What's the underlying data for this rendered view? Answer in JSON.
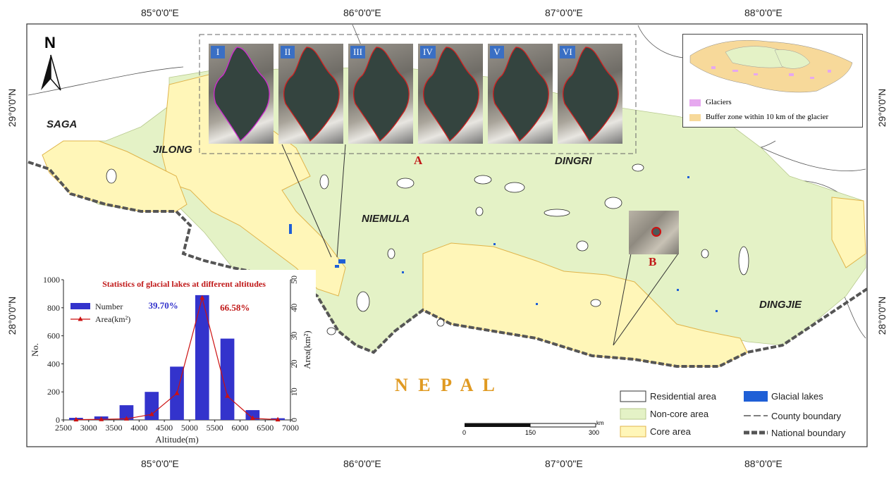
{
  "north_arrow": {
    "label": "N"
  },
  "coords_top": [
    "85°0'0\"E",
    "86°0'0\"E",
    "87°0'0\"E",
    "88°0'0\"E"
  ],
  "coords_bottom": [
    "85°0'0\"E",
    "86°0'0\"E",
    "87°0'0\"E",
    "88°0'0\"E"
  ],
  "coords_left": [
    "29°0'0\"N",
    "28°0'0\"N"
  ],
  "coords_right": [
    "29°0'0\"N",
    "28°0'0\"N"
  ],
  "regions": {
    "saga": "SAGA",
    "jilong": "JILONG",
    "niemula": "NIEMULA",
    "dingri": "DINGRI",
    "dingjie": "DINGJIE",
    "nepal": "N E P A L"
  },
  "inset_panels": [
    "I",
    "II",
    "III",
    "IV",
    "V",
    "VI"
  ],
  "callouts": {
    "a": "A",
    "b": "B"
  },
  "overview_legend": {
    "glaciers": "Glaciers",
    "buffer": "Buffer zone within 10 km of the glacier"
  },
  "map_legend": {
    "residential": "Residential area",
    "noncore": "Non-core area",
    "core": "Core area",
    "lakes": "Glacial lakes",
    "county": "County boundary",
    "national": "National boundary"
  },
  "scalebar": {
    "ticks": [
      "0",
      "150",
      "300"
    ],
    "unit": "km"
  },
  "colors": {
    "noncore": "#e4f2c6",
    "core": "#fff6b8",
    "core_border": "#e0b44a",
    "lakes": "#1f5fd6",
    "bars": "#3333cc",
    "area_line": "#cc1111",
    "glaciers": "#e6a8ef",
    "buffer": "#f7d99a",
    "nepal_text": "#e09a22"
  },
  "chart_data": {
    "type": "bar",
    "title": "Statistics of glacial lakes at different altitudes",
    "xlabel": "Altitude(m)",
    "ylabel": "No.",
    "y2label": "Area(km²)",
    "x_ticks": [
      "2500",
      "3000",
      "3500",
      "4000",
      "4500",
      "5000",
      "5500",
      "6000",
      "6500",
      "7000"
    ],
    "y_ticks": [
      "0",
      "200",
      "400",
      "600",
      "800",
      "1000"
    ],
    "y2_ticks": [
      "0",
      "10",
      "20",
      "30",
      "40",
      "50"
    ],
    "xlim": [
      2500,
      7000
    ],
    "ylim": [
      0,
      1000
    ],
    "y2lim": [
      0,
      50
    ],
    "x": [
      2750,
      3250,
      3750,
      4250,
      4750,
      5250,
      5750,
      6250,
      6750
    ],
    "series": [
      {
        "name": "Number",
        "type": "bar",
        "values": [
          15,
          25,
          105,
          200,
          380,
          890,
          580,
          70,
          12
        ]
      },
      {
        "name": "Area(km²)",
        "type": "line",
        "values": [
          0.1,
          0.2,
          0.4,
          2.0,
          9.5,
          43.5,
          8.5,
          0.6,
          0.1
        ]
      }
    ],
    "annotations": [
      "39.70%",
      "66.58%"
    ]
  }
}
